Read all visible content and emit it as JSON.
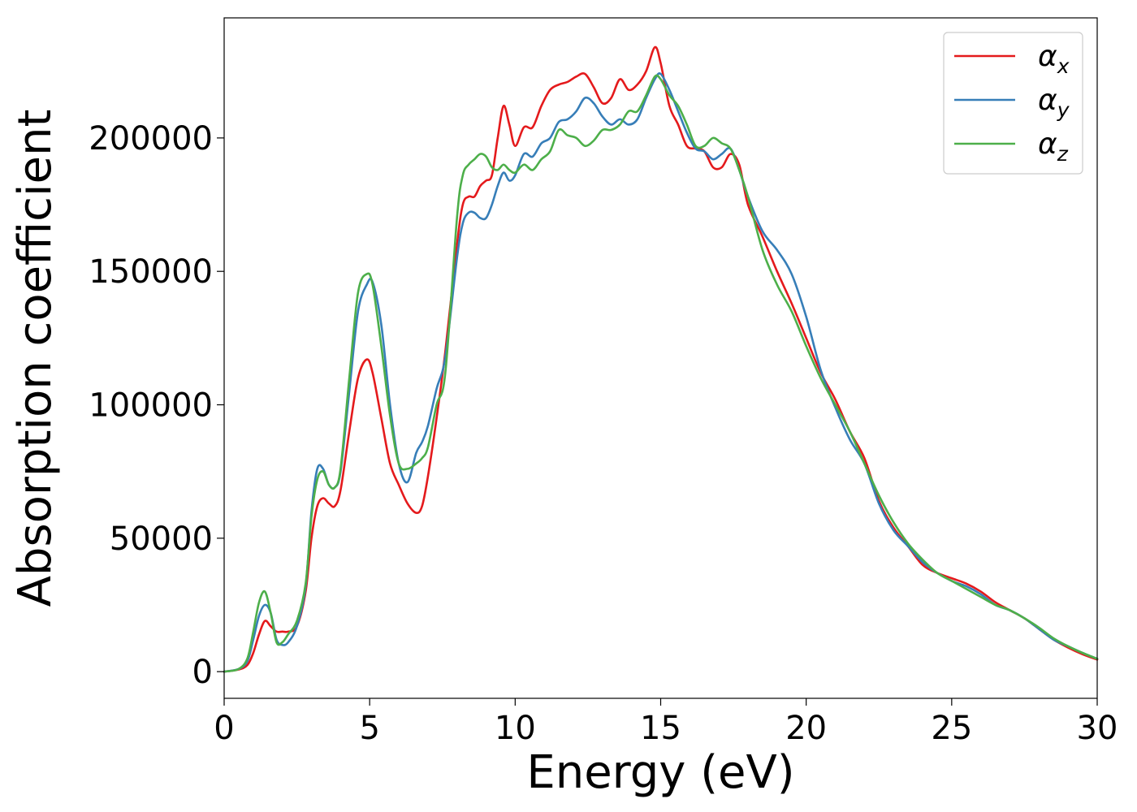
{
  "chart_data": {
    "type": "line",
    "title": "",
    "xlabel": "Energy (eV)",
    "ylabel": "Absorption coefficient",
    "xlim": [
      0,
      30
    ],
    "ylim": [
      -10000,
      245000
    ],
    "xticks": [
      0,
      5,
      10,
      15,
      20,
      25,
      30
    ],
    "yticks": [
      0,
      50000,
      100000,
      150000,
      200000
    ],
    "grid": false,
    "legend_position": "top-right",
    "series": [
      {
        "name": "αx",
        "label_base": "α",
        "label_sub": "x",
        "color": "#e41a1c",
        "x": [
          0,
          0.5,
          0.8,
          1.0,
          1.2,
          1.4,
          1.6,
          1.8,
          2.0,
          2.2,
          2.5,
          2.8,
          3.0,
          3.2,
          3.4,
          3.6,
          3.8,
          4.0,
          4.3,
          4.6,
          4.9,
          5.1,
          5.4,
          5.7,
          6.0,
          6.3,
          6.6,
          6.8,
          7.0,
          7.3,
          7.6,
          8.0,
          8.2,
          8.4,
          8.6,
          8.8,
          9.0,
          9.2,
          9.4,
          9.6,
          9.8,
          10.0,
          10.3,
          10.6,
          10.9,
          11.2,
          11.5,
          11.8,
          12.1,
          12.4,
          12.7,
          13.0,
          13.3,
          13.6,
          13.9,
          14.2,
          14.5,
          14.8,
          15.0,
          15.3,
          15.6,
          15.9,
          16.2,
          16.5,
          16.8,
          17.1,
          17.4,
          17.7,
          18.0,
          18.5,
          19.0,
          19.5,
          20.0,
          20.5,
          21.0,
          21.5,
          22.0,
          22.5,
          23.0,
          23.5,
          24.0,
          24.5,
          25.0,
          25.5,
          26.0,
          26.5,
          27.0,
          27.5,
          28.0,
          28.5,
          29.0,
          29.5,
          30.0
        ],
        "y": [
          0,
          800,
          2500,
          7000,
          14000,
          19000,
          17000,
          15000,
          15000,
          15000,
          17000,
          30000,
          50000,
          62000,
          65000,
          63000,
          62000,
          68000,
          90000,
          110000,
          117000,
          112000,
          95000,
          78000,
          70000,
          63000,
          59500,
          62000,
          73000,
          95000,
          120000,
          160000,
          175000,
          178000,
          178000,
          182000,
          184000,
          186000,
          200000,
          212000,
          205000,
          197000,
          204000,
          204000,
          212000,
          218000,
          220000,
          221000,
          223000,
          224000,
          219000,
          213000,
          215000,
          222000,
          218000,
          220000,
          225000,
          234000,
          228000,
          212000,
          205000,
          197000,
          196000,
          195000,
          189000,
          189000,
          194000,
          190000,
          175000,
          163000,
          150000,
          138000,
          125000,
          112000,
          102000,
          90000,
          80000,
          64000,
          54000,
          47000,
          40000,
          37000,
          35000,
          33000,
          30000,
          26000,
          23000,
          20000,
          16000,
          12000,
          9000,
          6500,
          4500
        ]
      },
      {
        "name": "αy",
        "label_base": "α",
        "label_sub": "y",
        "color": "#377eb8",
        "x": [
          0,
          0.5,
          0.8,
          1.0,
          1.2,
          1.4,
          1.6,
          1.8,
          2.0,
          2.2,
          2.5,
          2.8,
          3.0,
          3.2,
          3.4,
          3.6,
          3.8,
          4.0,
          4.3,
          4.6,
          4.9,
          5.1,
          5.4,
          5.7,
          6.0,
          6.3,
          6.6,
          6.8,
          7.0,
          7.3,
          7.6,
          8.0,
          8.2,
          8.4,
          8.6,
          8.8,
          9.0,
          9.2,
          9.4,
          9.6,
          9.8,
          10.0,
          10.3,
          10.6,
          10.9,
          11.2,
          11.5,
          11.8,
          12.1,
          12.4,
          12.7,
          13.0,
          13.3,
          13.6,
          13.9,
          14.2,
          14.5,
          14.8,
          15.0,
          15.3,
          15.6,
          15.9,
          16.2,
          16.5,
          16.8,
          17.1,
          17.4,
          17.7,
          18.0,
          18.5,
          19.0,
          19.5,
          20.0,
          20.5,
          21.0,
          21.5,
          22.0,
          22.5,
          23.0,
          23.5,
          24.0,
          24.5,
          25.0,
          25.5,
          26.0,
          26.5,
          27.0,
          27.5,
          28.0,
          28.5,
          29.0,
          29.5,
          30.0
        ],
        "y": [
          0,
          1000,
          4000,
          12000,
          21000,
          25000,
          22000,
          12000,
          10000,
          11000,
          17000,
          32000,
          60000,
          76000,
          76000,
          70000,
          69000,
          75000,
          105000,
          135000,
          145000,
          146000,
          130000,
          100000,
          78000,
          71000,
          82000,
          86000,
          92000,
          106000,
          118000,
          155000,
          168000,
          172000,
          172000,
          170000,
          170000,
          175000,
          182000,
          187000,
          184000,
          186000,
          194000,
          193000,
          198000,
          200000,
          206000,
          207000,
          210000,
          215000,
          213000,
          208000,
          205000,
          207000,
          205000,
          207000,
          215000,
          222000,
          224000,
          218000,
          210000,
          202000,
          196000,
          195000,
          192000,
          194000,
          196000,
          188000,
          178000,
          165000,
          158000,
          149000,
          133000,
          113000,
          99000,
          87000,
          78000,
          63000,
          53000,
          47000,
          41000,
          37000,
          34000,
          32000,
          29000,
          25000,
          23000,
          20000,
          16000,
          12000,
          9500,
          7000,
          4800
        ]
      },
      {
        "name": "αz",
        "label_base": "α",
        "label_sub": "z",
        "color": "#4daf4a",
        "x": [
          0,
          0.5,
          0.8,
          1.0,
          1.2,
          1.4,
          1.6,
          1.8,
          2.0,
          2.2,
          2.5,
          2.8,
          3.0,
          3.2,
          3.4,
          3.6,
          3.8,
          4.0,
          4.3,
          4.6,
          4.9,
          5.1,
          5.4,
          5.7,
          6.0,
          6.3,
          6.6,
          6.8,
          7.0,
          7.3,
          7.6,
          8.0,
          8.2,
          8.4,
          8.6,
          8.8,
          9.0,
          9.2,
          9.4,
          9.6,
          9.8,
          10.0,
          10.3,
          10.6,
          10.9,
          11.2,
          11.5,
          11.8,
          12.1,
          12.4,
          12.7,
          13.0,
          13.3,
          13.6,
          13.9,
          14.2,
          14.5,
          14.8,
          15.0,
          15.3,
          15.6,
          15.9,
          16.2,
          16.5,
          16.8,
          17.1,
          17.4,
          17.7,
          18.0,
          18.5,
          19.0,
          19.5,
          20.0,
          20.5,
          21.0,
          21.5,
          22.0,
          22.5,
          23.0,
          23.5,
          24.0,
          24.5,
          25.0,
          25.5,
          26.0,
          26.5,
          27.0,
          27.5,
          28.0,
          28.5,
          29.0,
          29.5,
          30.0
        ],
        "y": [
          0,
          1000,
          5000,
          15000,
          26000,
          30000,
          22000,
          11000,
          11000,
          14000,
          19000,
          33000,
          58000,
          72000,
          75000,
          70000,
          69000,
          76000,
          110000,
          142000,
          149000,
          145000,
          122000,
          96000,
          78000,
          76000,
          78000,
          80000,
          84000,
          100000,
          112000,
          170000,
          186000,
          190000,
          192000,
          194000,
          193000,
          189000,
          188000,
          190000,
          188000,
          187000,
          190000,
          188000,
          192000,
          195000,
          203000,
          201000,
          200000,
          197000,
          199000,
          203000,
          203000,
          205000,
          210000,
          210000,
          216000,
          223000,
          222000,
          216000,
          212000,
          205000,
          197000,
          197000,
          200000,
          198000,
          196000,
          188000,
          178000,
          158000,
          145000,
          135000,
          122000,
          110000,
          100000,
          90000,
          78000,
          66000,
          56000,
          48000,
          42000,
          37000,
          34000,
          31000,
          28000,
          25000,
          23000,
          20000,
          16500,
          12500,
          9500,
          7000,
          4800
        ]
      }
    ]
  }
}
